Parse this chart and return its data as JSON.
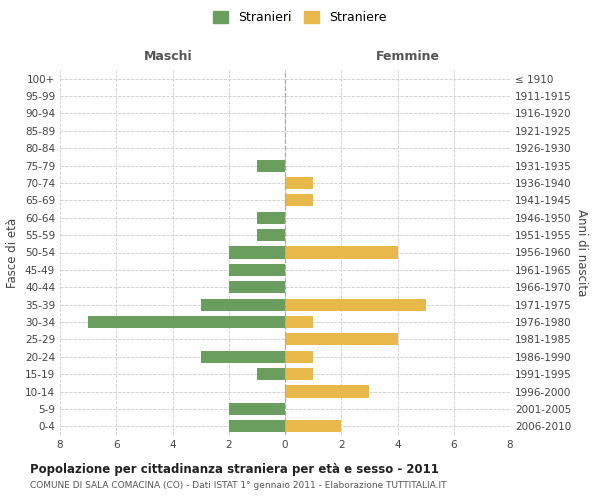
{
  "age_groups": [
    "100+",
    "95-99",
    "90-94",
    "85-89",
    "80-84",
    "75-79",
    "70-74",
    "65-69",
    "60-64",
    "55-59",
    "50-54",
    "45-49",
    "40-44",
    "35-39",
    "30-34",
    "25-29",
    "20-24",
    "15-19",
    "10-14",
    "5-9",
    "0-4"
  ],
  "birth_years": [
    "≤ 1910",
    "1911-1915",
    "1916-1920",
    "1921-1925",
    "1926-1930",
    "1931-1935",
    "1936-1940",
    "1941-1945",
    "1946-1950",
    "1951-1955",
    "1956-1960",
    "1961-1965",
    "1966-1970",
    "1971-1975",
    "1976-1980",
    "1981-1985",
    "1986-1990",
    "1991-1995",
    "1996-2000",
    "2001-2005",
    "2006-2010"
  ],
  "maschi": [
    0,
    0,
    0,
    0,
    0,
    1,
    0,
    0,
    1,
    1,
    2,
    2,
    2,
    3,
    7,
    0,
    3,
    1,
    0,
    2,
    2
  ],
  "femmine": [
    0,
    0,
    0,
    0,
    0,
    0,
    1,
    1,
    0,
    0,
    4,
    0,
    0,
    5,
    1,
    4,
    1,
    1,
    3,
    0,
    2
  ],
  "color_maschi": "#6a9e5e",
  "color_femmine": "#e8b84b",
  "title": "Popolazione per cittadinanza straniera per età e sesso - 2011",
  "subtitle": "COMUNE DI SALA COMACINA (CO) - Dati ISTAT 1° gennaio 2011 - Elaborazione TUTTITALIA.IT",
  "xlabel_left": "Maschi",
  "xlabel_right": "Femmine",
  "ylabel_left": "Fasce di età",
  "ylabel_right": "Anni di nascita",
  "legend_maschi": "Stranieri",
  "legend_femmine": "Straniere",
  "xlim": 8,
  "background_color": "#ffffff",
  "grid_color": "#cccccc"
}
